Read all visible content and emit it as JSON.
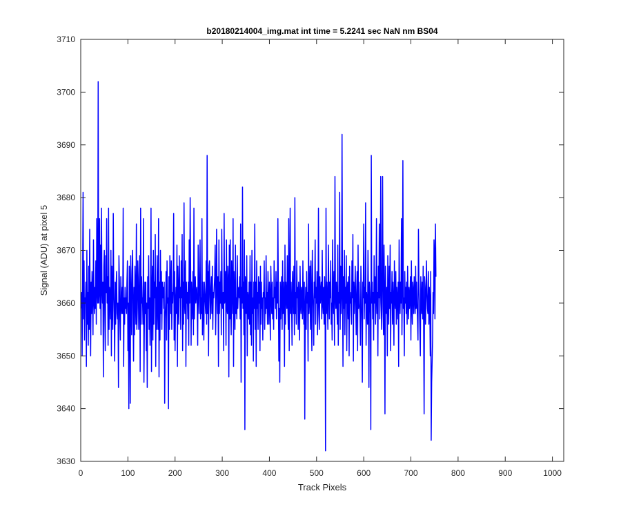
{
  "chart_data": {
    "type": "line",
    "title": "b20180214004_img.mat int time = 5.2241 sec  NaN nm BS04",
    "xlabel": "Track Pixels",
    "ylabel": "Signal (ADU) at pixel 5",
    "xlim": [
      0,
      1024
    ],
    "ylim": [
      3630,
      3710
    ],
    "x_ticks": [
      0,
      100,
      200,
      300,
      400,
      500,
      600,
      700,
      800,
      900,
      1000
    ],
    "y_ticks": [
      3630,
      3640,
      3650,
      3660,
      3670,
      3680,
      3690,
      3700,
      3710
    ],
    "grid": false,
    "series": [
      {
        "color": "#0000ff",
        "x_start": 1,
        "x_step": 1,
        "values": [
          3659,
          3662,
          3650,
          3665,
          3681,
          3657,
          3668,
          3653,
          3661,
          3660,
          3664,
          3648,
          3670,
          3656,
          3662,
          3652,
          3667,
          3655,
          3674,
          3660,
          3650,
          3664,
          3658,
          3666,
          3662,
          3654,
          3672,
          3661,
          3658,
          3663,
          3659,
          3668,
          3656,
          3676,
          3662,
          3660,
          3702,
          3660,
          3662,
          3676,
          3659,
          3671,
          3654,
          3678,
          3663,
          3660,
          3664,
          3646,
          3667,
          3670,
          3658,
          3651,
          3669,
          3662,
          3676,
          3660,
          3665,
          3652,
          3678,
          3655,
          3663,
          3661,
          3657,
          3670,
          3650,
          3667,
          3660,
          3655,
          3677,
          3663,
          3658,
          3649,
          3664,
          3656,
          3663,
          3666,
          3658,
          3657,
          3660,
          3644,
          3669,
          3664,
          3657,
          3653,
          3665,
          3660,
          3658,
          3663,
          3658,
          3678,
          3648,
          3661,
          3656,
          3663,
          3659,
          3661,
          3658,
          3664,
          3668,
          3651,
          3660,
          3640,
          3667,
          3662,
          3641,
          3669,
          3660,
          3654,
          3666,
          3670,
          3658,
          3649,
          3663,
          3654,
          3667,
          3661,
          3656,
          3675,
          3655,
          3659,
          3668,
          3664,
          3655,
          3661,
          3669,
          3647,
          3678,
          3656,
          3665,
          3660,
          3661,
          3656,
          3676,
          3645,
          3657,
          3664,
          3658,
          3664,
          3651,
          3660,
          3644,
          3665,
          3659,
          3669,
          3655,
          3661,
          3652,
          3661,
          3678,
          3647,
          3661,
          3667,
          3653,
          3670,
          3656,
          3664,
          3661,
          3673,
          3648,
          3663,
          3655,
          3669,
          3659,
          3655,
          3676,
          3646,
          3664,
          3653,
          3670,
          3658,
          3666,
          3655,
          3664,
          3661,
          3663,
          3659,
          3664,
          3641,
          3657,
          3660,
          3666,
          3653,
          3668,
          3660,
          3661,
          3640,
          3665,
          3655,
          3669,
          3664,
          3658,
          3668,
          3655,
          3662,
          3660,
          3664,
          3677,
          3653,
          3666,
          3651,
          3660,
          3663,
          3658,
          3671,
          3648,
          3667,
          3661,
          3656,
          3669,
          3661,
          3663,
          3655,
          3668,
          3661,
          3673,
          3651,
          3664,
          3656,
          3679,
          3660,
          3658,
          3668,
          3648,
          3664,
          3660,
          3662,
          3657,
          3664,
          3652,
          3672,
          3660,
          3680,
          3667,
          3652,
          3664,
          3661,
          3657,
          3666,
          3654,
          3678,
          3657,
          3662,
          3665,
          3660,
          3662,
          3663,
          3659,
          3652,
          3671,
          3663,
          3658,
          3665,
          3672,
          3657,
          3661,
          3658,
          3676,
          3654,
          3664,
          3660,
          3653,
          3664,
          3662,
          3660,
          3658,
          3668,
          3656,
          3688,
          3658,
          3666,
          3650,
          3667,
          3668,
          3661,
          3657,
          3663,
          3665,
          3658,
          3667,
          3655,
          3662,
          3661,
          3663,
          3665,
          3671,
          3654,
          3660,
          3674,
          3663,
          3658,
          3665,
          3648,
          3672,
          3658,
          3664,
          3660,
          3666,
          3654,
          3674,
          3661,
          3659,
          3662,
          3651,
          3677,
          3660,
          3661,
          3666,
          3652,
          3672,
          3659,
          3658,
          3667,
          3664,
          3646,
          3671,
          3657,
          3672,
          3658,
          3654,
          3668,
          3663,
          3658,
          3676,
          3648,
          3666,
          3661,
          3655,
          3671,
          3658,
          3661,
          3657,
          3669,
          3659,
          3662,
          3663,
          3661,
          3665,
          3657,
          3675,
          3645,
          3663,
          3660,
          3682,
          3659,
          3664,
          3654,
          3672,
          3636,
          3665,
          3663,
          3658,
          3669,
          3650,
          3662,
          3661,
          3657,
          3664,
          3656,
          3669,
          3654,
          3664,
          3652,
          3670,
          3658,
          3661,
          3649,
          3664,
          3659,
          3675,
          3655,
          3664,
          3648,
          3668,
          3659,
          3662,
          3655,
          3665,
          3660,
          3664,
          3651,
          3667,
          3656,
          3664,
          3659,
          3661,
          3653,
          3662,
          3661,
          3668,
          3655,
          3661,
          3658,
          3669,
          3659,
          3662,
          3656,
          3666,
          3660,
          3656,
          3664,
          3661,
          3653,
          3667,
          3662,
          3658,
          3664,
          3657,
          3661,
          3655,
          3668,
          3661,
          3663,
          3659,
          3666,
          3657,
          3664,
          3660,
          3676,
          3662,
          3649,
          3659,
          3645,
          3664,
          3657,
          3662,
          3665,
          3655,
          3668,
          3658,
          3664,
          3661,
          3648,
          3671,
          3656,
          3664,
          3661,
          3659,
          3669,
          3660,
          3655,
          3676,
          3651,
          3662,
          3678,
          3658,
          3664,
          3660,
          3652,
          3666,
          3663,
          3658,
          3667,
          3654,
          3680,
          3658,
          3662,
          3656,
          3668,
          3661,
          3663,
          3655,
          3664,
          3661,
          3653,
          3667,
          3660,
          3658,
          3663,
          3661,
          3657,
          3668,
          3660,
          3656,
          3664,
          3638,
          3659,
          3663,
          3655,
          3666,
          3660,
          3662,
          3649,
          3675,
          3658,
          3661,
          3667,
          3655,
          3668,
          3659,
          3651,
          3670,
          3662,
          3659,
          3652,
          3664,
          3661,
          3672,
          3656,
          3663,
          3660,
          3666,
          3654,
          3658,
          3678,
          3661,
          3655,
          3665,
          3660,
          3662,
          3664,
          3657,
          3670,
          3660,
          3658,
          3663,
          3656,
          3665,
          3661,
          3632,
          3678,
          3658,
          3664,
          3660,
          3655,
          3671,
          3663,
          3657,
          3664,
          3661,
          3668,
          3656,
          3660,
          3653,
          3672,
          3661,
          3658,
          3666,
          3652,
          3684,
          3661,
          3659,
          3664,
          3660,
          3656,
          3671,
          3652,
          3662,
          3660,
          3681,
          3655,
          3667,
          3658,
          3661,
          3692,
          3663,
          3648,
          3665,
          3659,
          3670,
          3654,
          3663,
          3660,
          3669,
          3651,
          3662,
          3664,
          3657,
          3665,
          3650,
          3667,
          3660,
          3662,
          3658,
          3656,
          3668,
          3661,
          3673,
          3649,
          3664,
          3658,
          3661,
          3667,
          3660,
          3654,
          3662,
          3666,
          3651,
          3671,
          3659,
          3664,
          3660,
          3658,
          3652,
          3667,
          3662,
          3656,
          3645,
          3664,
          3661,
          3675,
          3657,
          3663,
          3660,
          3679,
          3652,
          3662,
          3660,
          3656,
          3670,
          3661,
          3644,
          3664,
          3662,
          3658,
          3636,
          3688,
          3660,
          3664,
          3657,
          3662,
          3653,
          3669,
          3660,
          3665,
          3656,
          3661,
          3676,
          3658,
          3662,
          3650,
          3667,
          3661,
          3675,
          3657,
          3663,
          3684,
          3660,
          3655,
          3666,
          3684,
          3659,
          3654,
          3671,
          3661,
          3639,
          3667,
          3660,
          3658,
          3663,
          3650,
          3669,
          3661,
          3656,
          3667,
          3659,
          3671,
          3651,
          3662,
          3660,
          3666,
          3656,
          3664,
          3660,
          3652,
          3668,
          3661,
          3659,
          3666,
          3656,
          3663,
          3661,
          3657,
          3664,
          3648,
          3672,
          3662,
          3658,
          3664,
          3660,
          3676,
          3654,
          3664,
          3687,
          3659,
          3661,
          3650,
          3666,
          3660,
          3663,
          3658,
          3664,
          3656,
          3667,
          3661,
          3657,
          3663,
          3659,
          3661,
          3665,
          3653,
          3668,
          3660,
          3656,
          3664,
          3662,
          3658,
          3665,
          3661,
          3658,
          3667,
          3659,
          3664,
          3660,
          3657,
          3653,
          3674,
          3664,
          3660,
          3655,
          3650,
          3665,
          3661,
          3658,
          3664,
          3657,
          3667,
          3656,
          3639,
          3665,
          3663,
          3656,
          3661,
          3668,
          3662,
          3659,
          3658,
          3666,
          3656,
          3663,
          3660,
          3650,
          3666,
          3634,
          3645,
          3649,
          3653,
          3662,
          3658,
          3672,
          3669,
          3657,
          3675,
          3665
        ]
      }
    ]
  }
}
